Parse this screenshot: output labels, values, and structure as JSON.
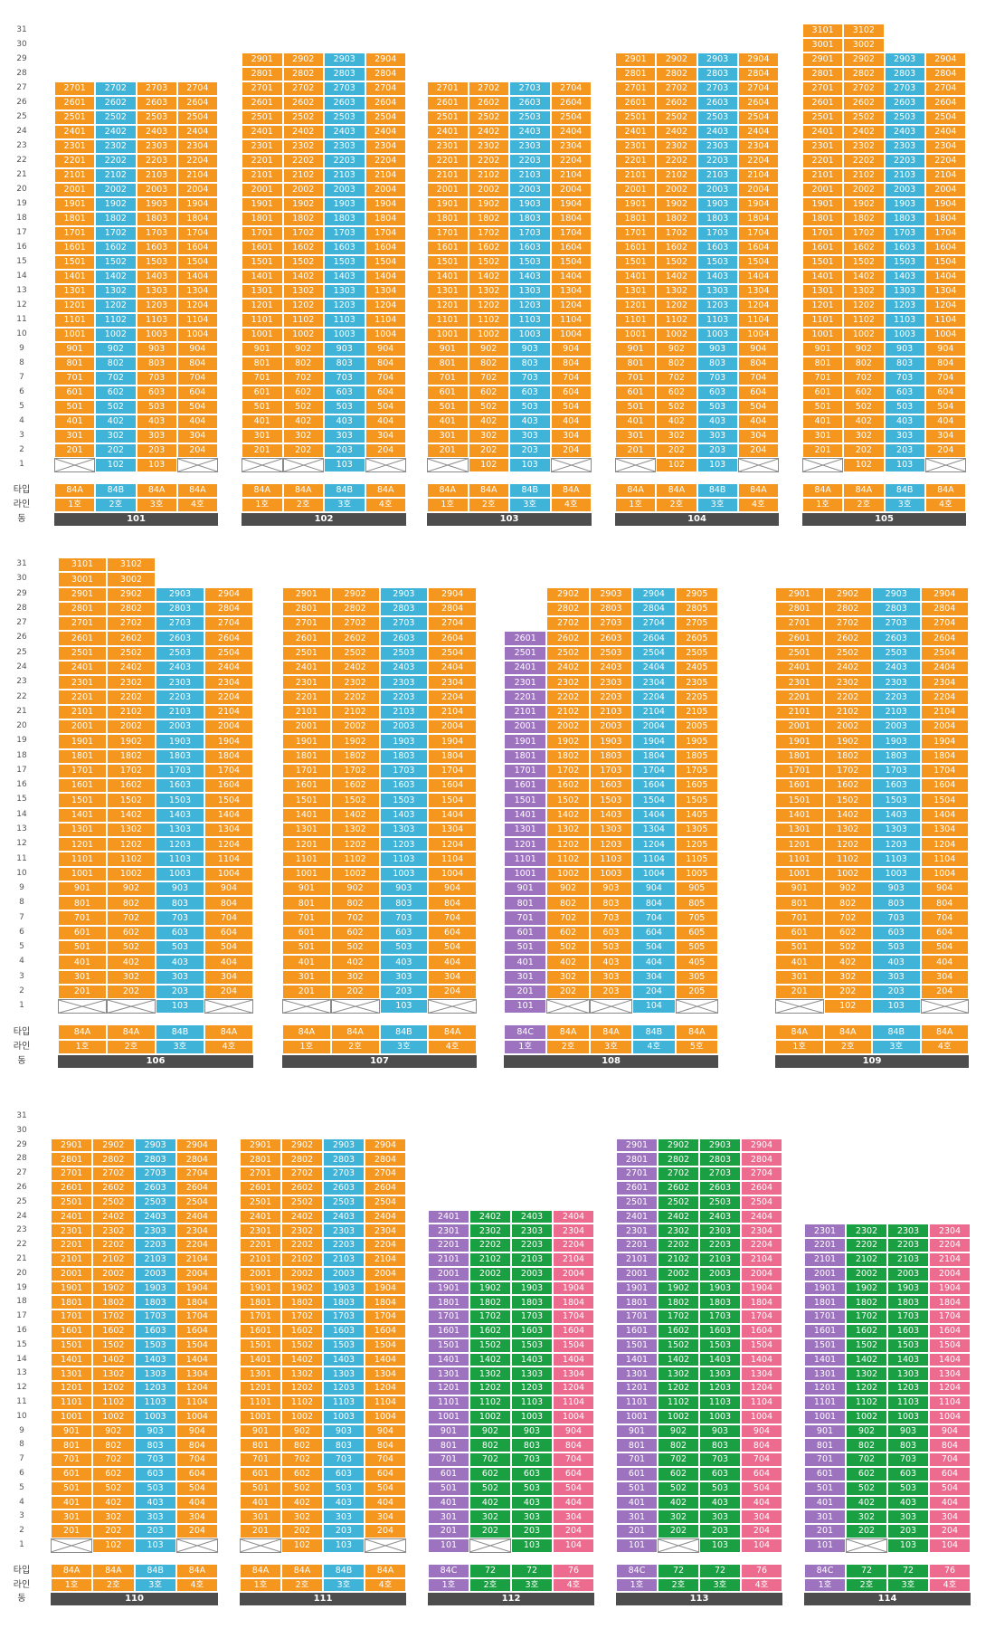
{
  "row_labels": {
    "type": "타입",
    "line": "라인",
    "building": "동"
  },
  "colors": {
    "84A": "#f5961e",
    "84B": "#3fb4d8",
    "84C": "#9d72bf",
    "72": "#1aa043",
    "76": "#ec6b8e",
    "empty": "#ffffff"
  },
  "buildings": [
    {
      "name": "101",
      "lines": [
        {
          "type": "84A",
          "line": "1호",
          "top": 27,
          "bottom": 2
        },
        {
          "type": "84B",
          "line": "2호",
          "top": 27,
          "bottom": 1
        },
        {
          "type": "84A",
          "line": "3호",
          "top": 27,
          "bottom": 1
        },
        {
          "type": "84A",
          "line": "4호",
          "top": 27,
          "bottom": 2
        }
      ]
    },
    {
      "name": "102",
      "lines": [
        {
          "type": "84A",
          "line": "1호",
          "top": 29,
          "bottom": 2
        },
        {
          "type": "84A",
          "line": "2호",
          "top": 29,
          "bottom": 2
        },
        {
          "type": "84B",
          "line": "3호",
          "top": 29,
          "bottom": 1
        },
        {
          "type": "84A",
          "line": "4호",
          "top": 29,
          "bottom": 2
        }
      ]
    },
    {
      "name": "103",
      "lines": [
        {
          "type": "84A",
          "line": "1호",
          "top": 27,
          "bottom": 2
        },
        {
          "type": "84A",
          "line": "2호",
          "top": 27,
          "bottom": 1
        },
        {
          "type": "84B",
          "line": "3호",
          "top": 27,
          "bottom": 1
        },
        {
          "type": "84A",
          "line": "4호",
          "top": 27,
          "bottom": 2
        }
      ]
    },
    {
      "name": "104",
      "lines": [
        {
          "type": "84A",
          "line": "1호",
          "top": 29,
          "bottom": 2
        },
        {
          "type": "84A",
          "line": "2호",
          "top": 29,
          "bottom": 1
        },
        {
          "type": "84B",
          "line": "3호",
          "top": 29,
          "bottom": 1
        },
        {
          "type": "84A",
          "line": "4호",
          "top": 29,
          "bottom": 2
        }
      ]
    },
    {
      "name": "105",
      "lines": [
        {
          "type": "84A",
          "line": "1호",
          "top": 31,
          "bottom": 2
        },
        {
          "type": "84A",
          "line": "2호",
          "top": 31,
          "bottom": 1
        },
        {
          "type": "84B",
          "line": "3호",
          "top": 29,
          "bottom": 1
        },
        {
          "type": "84A",
          "line": "4호",
          "top": 29,
          "bottom": 2
        }
      ]
    },
    {
      "name": "106",
      "lines": [
        {
          "type": "84A",
          "line": "1호",
          "top": 31,
          "bottom": 2
        },
        {
          "type": "84A",
          "line": "2호",
          "top": 31,
          "bottom": 2
        },
        {
          "type": "84B",
          "line": "3호",
          "top": 29,
          "bottom": 1
        },
        {
          "type": "84A",
          "line": "4호",
          "top": 29,
          "bottom": 2
        }
      ]
    },
    {
      "name": "107",
      "lines": [
        {
          "type": "84A",
          "line": "1호",
          "top": 29,
          "bottom": 2
        },
        {
          "type": "84A",
          "line": "2호",
          "top": 29,
          "bottom": 2
        },
        {
          "type": "84B",
          "line": "3호",
          "top": 29,
          "bottom": 1
        },
        {
          "type": "84A",
          "line": "4호",
          "top": 29,
          "bottom": 2
        }
      ]
    },
    {
      "name": "108",
      "lines": [
        {
          "type": "84C",
          "line": "1호",
          "top": 26,
          "bottom": 1
        },
        {
          "type": "84A",
          "line": "2호",
          "top": 29,
          "bottom": 2
        },
        {
          "type": "84A",
          "line": "3호",
          "top": 29,
          "bottom": 2
        },
        {
          "type": "84B",
          "line": "4호",
          "top": 29,
          "bottom": 1
        },
        {
          "type": "84A",
          "line": "5호",
          "top": 29,
          "bottom": 2
        }
      ]
    },
    {
      "name": "109",
      "lines": [
        {
          "type": "84A",
          "line": "1호",
          "top": 29,
          "bottom": 2
        },
        {
          "type": "84A",
          "line": "2호",
          "top": 29,
          "bottom": 1
        },
        {
          "type": "84B",
          "line": "3호",
          "top": 29,
          "bottom": 1
        },
        {
          "type": "84A",
          "line": "4호",
          "top": 29,
          "bottom": 2
        }
      ]
    },
    {
      "name": "110",
      "lines": [
        {
          "type": "84A",
          "line": "1호",
          "top": 29,
          "bottom": 2
        },
        {
          "type": "84A",
          "line": "2호",
          "top": 29,
          "bottom": 1
        },
        {
          "type": "84B",
          "line": "3호",
          "top": 29,
          "bottom": 1
        },
        {
          "type": "84A",
          "line": "4호",
          "top": 29,
          "bottom": 2
        }
      ]
    },
    {
      "name": "111",
      "lines": [
        {
          "type": "84A",
          "line": "1호",
          "top": 29,
          "bottom": 2
        },
        {
          "type": "84A",
          "line": "2호",
          "top": 29,
          "bottom": 1
        },
        {
          "type": "84B",
          "line": "3호",
          "top": 29,
          "bottom": 1
        },
        {
          "type": "84A",
          "line": "4호",
          "top": 29,
          "bottom": 2
        }
      ]
    },
    {
      "name": "112",
      "lines": [
        {
          "type": "84C",
          "line": "1호",
          "top": 24,
          "bottom": 1
        },
        {
          "type": "72",
          "line": "2호",
          "top": 24,
          "bottom": 2
        },
        {
          "type": "72",
          "line": "3호",
          "top": 24,
          "bottom": 1
        },
        {
          "type": "76",
          "line": "4호",
          "top": 24,
          "bottom": 1
        }
      ]
    },
    {
      "name": "113",
      "lines": [
        {
          "type": "84C",
          "line": "1호",
          "top": 29,
          "bottom": 1
        },
        {
          "type": "72",
          "line": "2호",
          "top": 29,
          "bottom": 2
        },
        {
          "type": "72",
          "line": "3호",
          "top": 29,
          "bottom": 1
        },
        {
          "type": "76",
          "line": "4호",
          "top": 29,
          "bottom": 1
        }
      ]
    },
    {
      "name": "114",
      "lines": [
        {
          "type": "84C",
          "line": "1호",
          "top": 23,
          "bottom": 1
        },
        {
          "type": "72",
          "line": "2호",
          "top": 23,
          "bottom": 2
        },
        {
          "type": "72",
          "line": "3호",
          "top": 23,
          "bottom": 1
        },
        {
          "type": "76",
          "line": "4호",
          "top": 23,
          "bottom": 1
        }
      ]
    }
  ]
}
